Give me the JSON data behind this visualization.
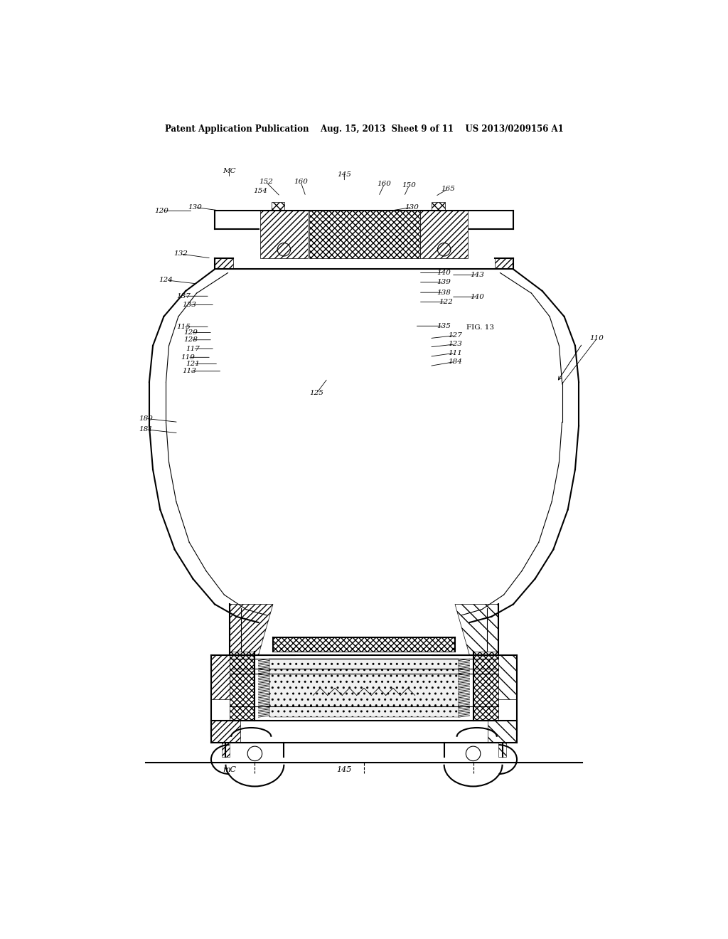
{
  "bg_color": "#ffffff",
  "line_color": "#000000",
  "header_text": "Patent Application Publication    Aug. 15, 2013  Sheet 9 of 11    US 2013/0209156 A1",
  "fig_label": "FIG. 13"
}
